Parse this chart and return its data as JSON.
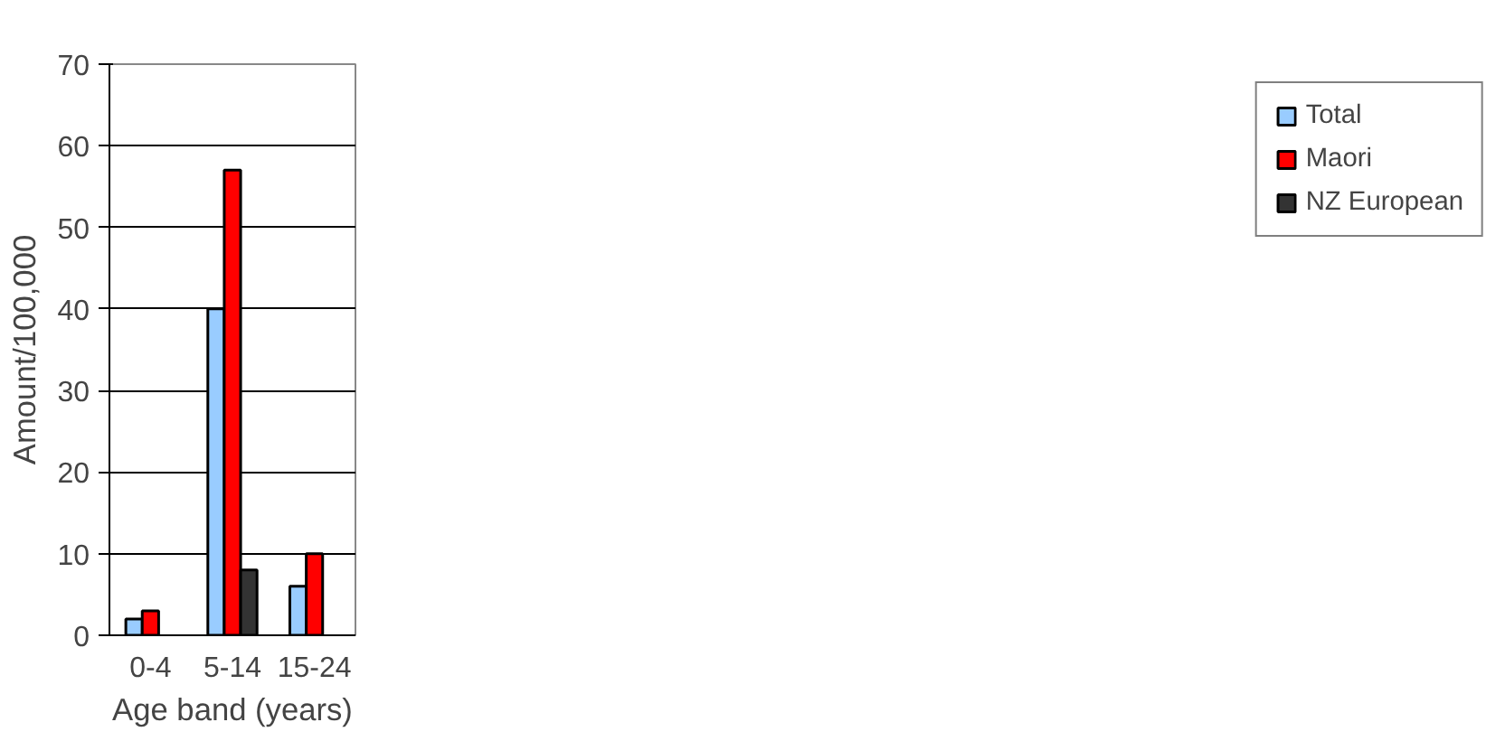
{
  "chart_data": {
    "type": "bar",
    "xlabel": "Age band (years)",
    "ylabel": "Amount/100,000",
    "categories": [
      "0-4",
      "5-14",
      "15-24"
    ],
    "series": [
      {
        "name": "Total",
        "color": "#99ccff",
        "values": [
          2,
          40,
          6
        ]
      },
      {
        "name": "Maori",
        "color": "#ff0000",
        "values": [
          3,
          57,
          10
        ]
      },
      {
        "name": "NZ European",
        "color": "#333333",
        "values": [
          null,
          8,
          null
        ]
      }
    ],
    "ylim": [
      0,
      70
    ],
    "yticks": [
      0,
      10,
      20,
      30,
      40,
      50,
      60,
      70
    ],
    "grid": "y",
    "legend": "right"
  }
}
